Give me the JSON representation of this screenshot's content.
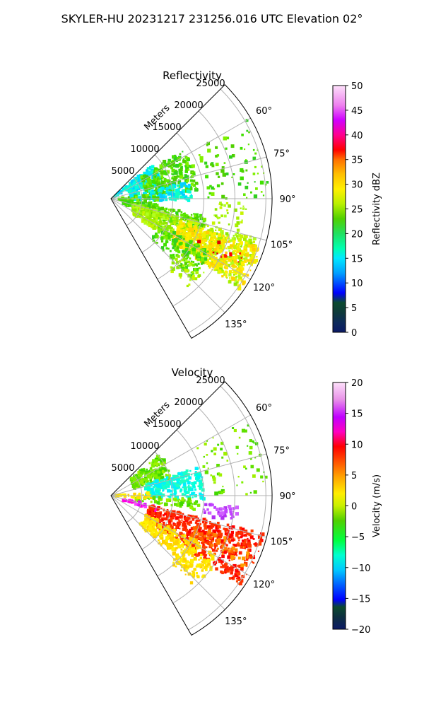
{
  "figure": {
    "suptitle": "SKYLER-HU  20231217  231256.016 UTC Elevation 02°"
  },
  "chart_data": [
    {
      "type": "heatmap",
      "projection": "polar-sector",
      "title": "Reflectivity",
      "range_label": "Meters",
      "range_ticks": [
        5000,
        10000,
        15000,
        20000,
        25000
      ],
      "azimuth_range_deg": [
        45,
        150
      ],
      "azimuth_ticks": [
        "60°",
        "75°",
        "90°",
        "105°",
        "120°",
        "135°"
      ],
      "grid": true,
      "colorbar": {
        "label": "Reflectivity dBZ",
        "vmin": 0,
        "vmax": 50,
        "ticks": [
          "0",
          "5",
          "10",
          "15",
          "20",
          "25",
          "30",
          "35",
          "40",
          "45",
          "50"
        ]
      }
    },
    {
      "type": "heatmap",
      "projection": "polar-sector",
      "title": "Velocity",
      "range_label": "Meters",
      "range_ticks": [
        5000,
        10000,
        15000,
        20000,
        25000
      ],
      "azimuth_range_deg": [
        45,
        150
      ],
      "azimuth_ticks": [
        "60°",
        "75°",
        "90°",
        "105°",
        "120°",
        "135°"
      ],
      "grid": true,
      "colorbar": {
        "label": "Velocity (m/s)",
        "vmin": -20,
        "vmax": 20,
        "ticks": [
          "−20",
          "−15",
          "−10",
          "−5",
          "0",
          "5",
          "10",
          "15",
          "20"
        ]
      }
    }
  ]
}
